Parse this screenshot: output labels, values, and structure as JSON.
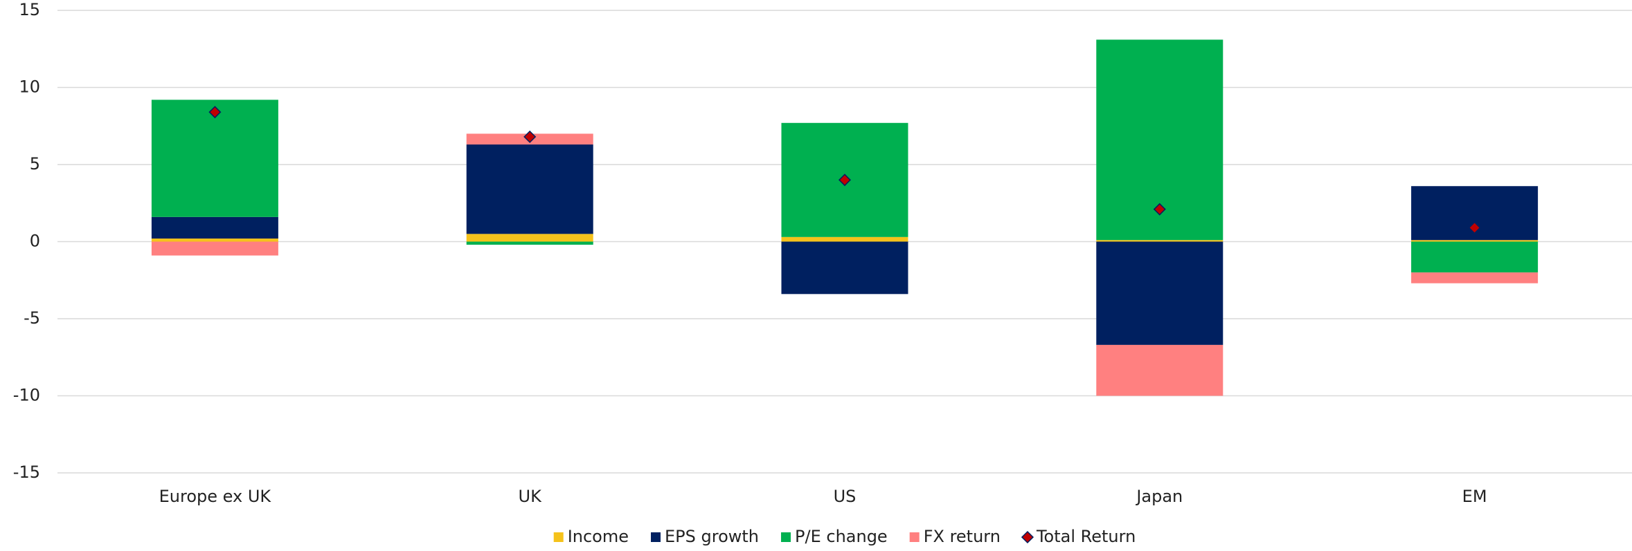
{
  "chart_data": {
    "type": "stacked_bar",
    "categories": [
      "Europe ex UK",
      "UK",
      "US",
      "Japan",
      "EM"
    ],
    "series": [
      {
        "name": "Income",
        "color": "#f5c21b",
        "values": [
          0.2,
          0.5,
          0.3,
          0.1,
          0.1
        ]
      },
      {
        "name": "EPS growth",
        "color": "#002060",
        "values": [
          1.4,
          5.8,
          -3.4,
          -6.7,
          3.5
        ]
      },
      {
        "name": "P/E change",
        "color": "#00b050",
        "values": [
          7.6,
          -0.2,
          7.4,
          13.0,
          -2.0
        ]
      },
      {
        "name": "FX return",
        "color": "#ff8080",
        "values": [
          -0.9,
          0.7,
          0,
          -3.3,
          -0.7
        ]
      }
    ],
    "total": {
      "name": "Total Return",
      "color": "#c00000",
      "values": [
        8.4,
        6.8,
        4.0,
        2.1,
        0.9
      ]
    },
    "ylim": [
      -15,
      15
    ],
    "yticks": [
      -15,
      -10,
      -5,
      0,
      5,
      10,
      15
    ],
    "grid": true,
    "legend": "bottom"
  }
}
